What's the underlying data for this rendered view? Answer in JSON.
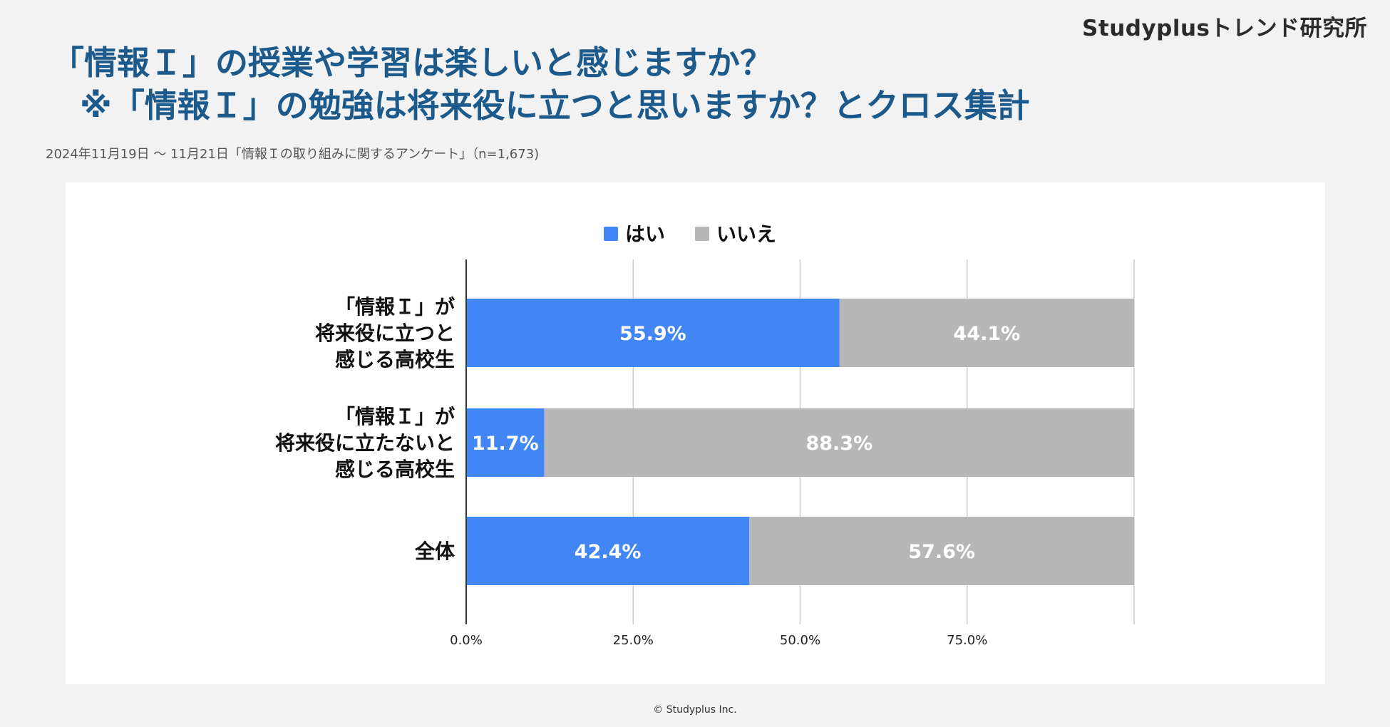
{
  "brand": "Studyplusトレンド研究所",
  "title": {
    "line1": "「情報Ｉ」の授業や学習は楽しいと感じますか？",
    "line2": "※「情報Ｉ」の勉強は将来役に立つと思いますか？とクロス集計"
  },
  "subtitle": "2024年11月19日 〜 11月21日「情報Ｉの取り組みに関するアンケート」（n=1,673)",
  "footer": "© Studyplus Inc.",
  "chart_data": {
    "type": "bar",
    "orientation": "horizontal",
    "stacked": true,
    "title": "",
    "xlabel": "",
    "ylabel": "",
    "xlim": [
      0,
      100
    ],
    "x_ticks": [
      0,
      25,
      50,
      75
    ],
    "x_tick_labels": [
      "0.0%",
      "25.0%",
      "50.0%",
      "75.0%"
    ],
    "grid": true,
    "legend_position": "top",
    "categories": [
      [
        "「情報Ｉ」が",
        "将来役に立つと",
        "感じる高校生"
      ],
      [
        "「情報Ｉ」が",
        "将来役に立たないと",
        "感じる高校生"
      ],
      [
        "全体"
      ]
    ],
    "series": [
      {
        "name": "はい",
        "color": "#4285f4",
        "values": [
          55.9,
          11.7,
          42.4
        ],
        "labels": [
          "55.9%",
          "11.7%",
          "42.4%"
        ]
      },
      {
        "name": "いいえ",
        "color": "#b7b7b7",
        "values": [
          44.1,
          88.3,
          57.6
        ],
        "labels": [
          "44.1%",
          "88.3%",
          "57.6%"
        ]
      }
    ]
  }
}
